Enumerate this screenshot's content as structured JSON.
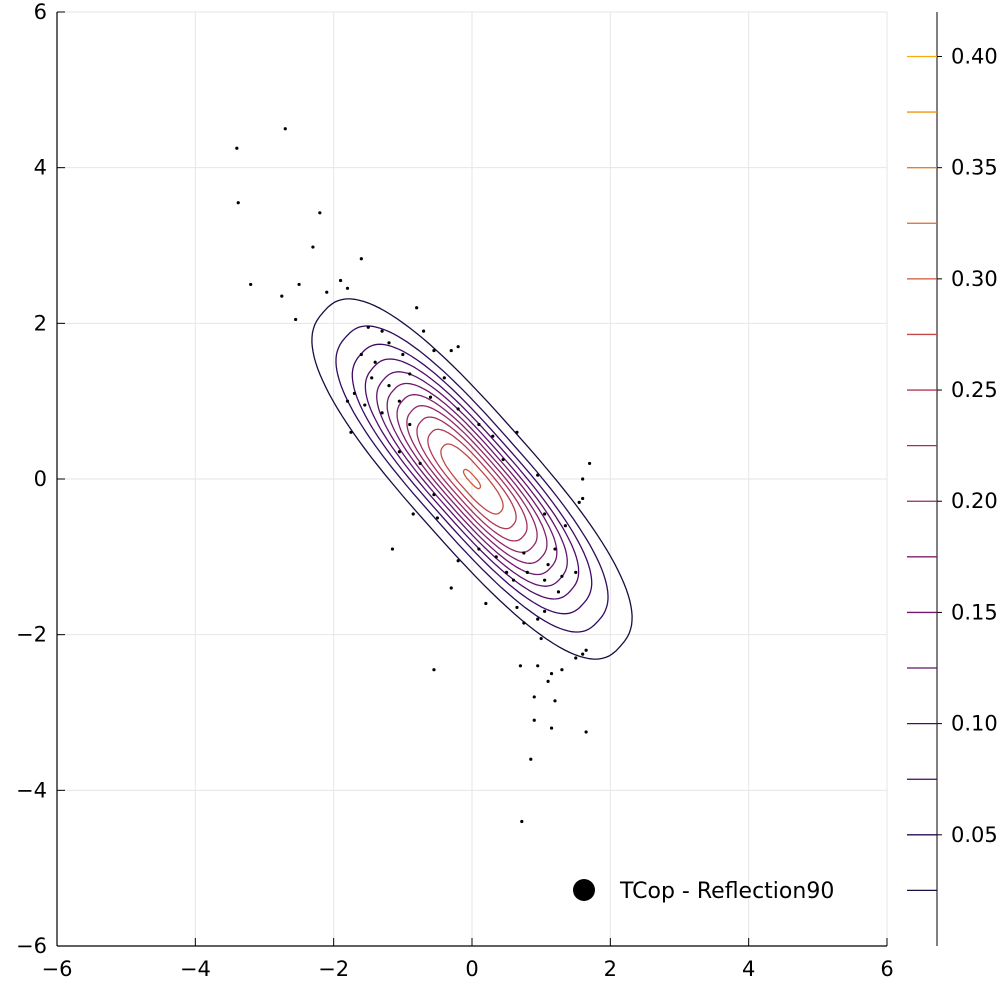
{
  "chart_data": {
    "type": "scatter",
    "title": "",
    "xlabel": "",
    "ylabel": "",
    "xlim": [
      -6,
      6
    ],
    "ylim": [
      -6,
      6
    ],
    "x_ticks": [
      -6,
      -4,
      -2,
      0,
      2,
      4,
      6
    ],
    "y_ticks": [
      -6,
      -4,
      -2,
      0,
      2,
      4,
      6
    ],
    "x_tick_labels": [
      "−6",
      "−4",
      "−2",
      "0",
      "2",
      "4",
      "6"
    ],
    "y_tick_labels": [
      "−6",
      "−4",
      "−2",
      "0",
      "2",
      "4",
      "6"
    ],
    "grid": true,
    "legend": {
      "position": "bottom-right",
      "entries": [
        {
          "label": "TCop - Reflection90",
          "marker": "circle",
          "color": "#000000"
        }
      ]
    },
    "contour": {
      "kind": "density contours",
      "colormap": "inferno",
      "levels": [
        0.025,
        0.05,
        0.075,
        0.1,
        0.125,
        0.15,
        0.175,
        0.2,
        0.225,
        0.25,
        0.275,
        0.3,
        0.325,
        0.35,
        0.375,
        0.4
      ],
      "level_colors": [
        "#1b0c41",
        "#2c0c5a",
        "#3d0965",
        "#4e0d6b",
        "#5f136e",
        "#6f196e",
        "#80206c",
        "#912869",
        "#a1305f",
        "#b23a53",
        "#c24746",
        "#d15739",
        "#dd6a2c",
        "#e8801e",
        "#f19511",
        "#f8ab06"
      ],
      "colorbar_ticks": [
        0.05,
        0.1,
        0.15,
        0.2,
        0.25,
        0.3,
        0.35,
        0.4
      ],
      "colorbar_tick_labels": [
        "0.05",
        "0.10",
        "0.15",
        "0.20",
        "0.25",
        "0.30",
        "0.35",
        "0.40"
      ],
      "colorbar_range": [
        0,
        0.42
      ],
      "correlation": -0.85
    },
    "series": [
      {
        "type": "scatter",
        "color": "#000000",
        "points": [
          [
            -2.7,
            4.5
          ],
          [
            -3.4,
            4.25
          ],
          [
            -3.38,
            3.55
          ],
          [
            -2.2,
            3.42
          ],
          [
            -2.3,
            2.98
          ],
          [
            -1.6,
            2.83
          ],
          [
            -3.2,
            2.5
          ],
          [
            -2.75,
            2.35
          ],
          [
            -2.5,
            2.5
          ],
          [
            -1.9,
            2.55
          ],
          [
            -2.1,
            2.4
          ],
          [
            -1.8,
            2.45
          ],
          [
            -0.8,
            2.2
          ],
          [
            -2.55,
            2.05
          ],
          [
            -0.7,
            1.9
          ],
          [
            -1.5,
            1.95
          ],
          [
            -1.3,
            1.9
          ],
          [
            -0.3,
            1.65
          ],
          [
            -0.55,
            1.65
          ],
          [
            -0.2,
            1.7
          ],
          [
            -1.8,
            1.0
          ],
          [
            -1.75,
            0.6
          ],
          [
            -1.15,
            -0.9
          ],
          [
            -0.55,
            -2.45
          ],
          [
            -0.3,
            -1.4
          ],
          [
            0.2,
            -1.6
          ],
          [
            0.65,
            -1.65
          ],
          [
            0.75,
            -1.85
          ],
          [
            0.95,
            -1.8
          ],
          [
            1.0,
            -2.05
          ],
          [
            0.7,
            -2.4
          ],
          [
            0.95,
            -2.4
          ],
          [
            1.1,
            -2.6
          ],
          [
            1.15,
            -2.5
          ],
          [
            1.3,
            -2.45
          ],
          [
            1.5,
            -2.3
          ],
          [
            1.6,
            -2.25
          ],
          [
            1.65,
            -2.2
          ],
          [
            0.9,
            -2.8
          ],
          [
            1.2,
            -2.85
          ],
          [
            0.9,
            -3.1
          ],
          [
            1.15,
            -3.2
          ],
          [
            1.65,
            -3.25
          ],
          [
            0.85,
            -3.6
          ],
          [
            0.72,
            -4.4
          ],
          [
            1.7,
            0.2
          ],
          [
            1.55,
            -0.3
          ],
          [
            1.6,
            0.0
          ],
          [
            1.6,
            -0.25
          ],
          [
            0.65,
            0.6
          ],
          [
            -1.0,
            1.6
          ],
          [
            -1.2,
            1.75
          ],
          [
            -1.6,
            1.6
          ],
          [
            -1.4,
            1.5
          ],
          [
            -1.2,
            1.2
          ],
          [
            -1.45,
            1.3
          ],
          [
            -1.7,
            1.1
          ],
          [
            -1.55,
            0.95
          ],
          [
            -0.85,
            -0.45
          ],
          [
            -0.5,
            -0.5
          ],
          [
            -0.2,
            -1.05
          ],
          [
            0.5,
            -1.2
          ],
          [
            0.6,
            -1.3
          ],
          [
            1.05,
            -1.7
          ],
          [
            1.25,
            -1.45
          ],
          [
            1.5,
            -1.2
          ],
          [
            1.2,
            -0.9
          ],
          [
            1.35,
            -0.6
          ],
          [
            1.05,
            -0.45
          ],
          [
            0.95,
            0.05
          ],
          [
            -0.4,
            1.3
          ],
          [
            -0.6,
            1.05
          ],
          [
            -0.9,
            1.35
          ],
          [
            -1.05,
            1.0
          ],
          [
            -1.3,
            0.85
          ],
          [
            -0.9,
            0.7
          ],
          [
            -1.05,
            0.35
          ],
          [
            -0.75,
            0.2
          ],
          [
            -0.55,
            -0.2
          ],
          [
            0.1,
            -0.9
          ],
          [
            0.35,
            -1.0
          ],
          [
            0.75,
            -0.95
          ],
          [
            0.8,
            -1.2
          ],
          [
            1.1,
            -1.1
          ],
          [
            1.3,
            -1.25
          ],
          [
            1.05,
            -1.3
          ],
          [
            0.3,
            0.55
          ],
          [
            0.1,
            0.7
          ],
          [
            -0.2,
            0.9
          ],
          [
            0.45,
            0.25
          ]
        ]
      }
    ]
  }
}
